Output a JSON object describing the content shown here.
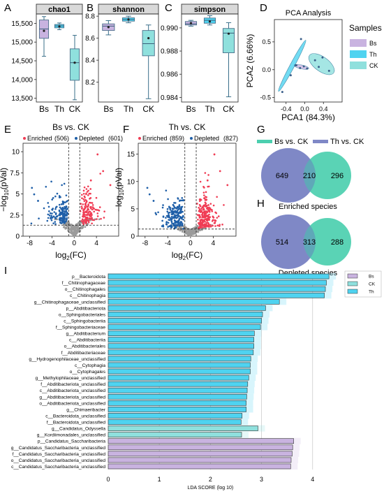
{
  "panel_letters": {
    "A": "A",
    "B": "B",
    "C": "C",
    "D": "D",
    "E": "E",
    "F": "F",
    "G": "G",
    "H": "H",
    "I": "I"
  },
  "colors": {
    "Bs": "#c9b3e0",
    "Th": "#4fd3f0",
    "CK": "#8fe0dd",
    "depleted": "#1f5fa8",
    "enriched": "#f03c54",
    "ns": "#9b9b9b",
    "venn_left": "#7f88c6",
    "venn_right": "#4ccfaf",
    "venn_overlap": "#5fa8b8"
  },
  "chart_data": [
    {
      "type": "box",
      "panel": "A",
      "title": "chao1",
      "categories": [
        "Bs",
        "Th",
        "CK"
      ],
      "ylim": [
        13400,
        15750
      ],
      "yticks": [
        13500,
        14000,
        14500,
        15000,
        15500
      ],
      "ytick_labels": [
        "13,500",
        "14,000",
        "14,500",
        "15,000",
        "15,500"
      ],
      "boxes": [
        {
          "min": 14620,
          "q1": 15100,
          "median": 15350,
          "q3": 15590,
          "max": 15680,
          "mean": 15300
        },
        {
          "min": 15330,
          "q1": 15380,
          "median": 15430,
          "q3": 15470,
          "max": 15510,
          "mean": 15420
        },
        {
          "min": 13460,
          "q1": 13980,
          "median": 14450,
          "q3": 14820,
          "max": 15180,
          "mean": 14450
        }
      ]
    },
    {
      "type": "box",
      "panel": "B",
      "title": "shannon",
      "categories": [
        "Bs",
        "Th",
        "CK"
      ],
      "ylim": [
        8.02,
        8.82
      ],
      "yticks": [
        8.2,
        8.4,
        8.6,
        8.8
      ],
      "ytick_labels": [
        "8.2",
        "8.4",
        "8.6",
        "8.8"
      ],
      "boxes": [
        {
          "min": 8.63,
          "q1": 8.67,
          "median": 8.71,
          "q3": 8.73,
          "max": 8.76,
          "mean": 8.7
        },
        {
          "min": 8.74,
          "q1": 8.755,
          "median": 8.77,
          "q3": 8.785,
          "max": 8.8,
          "mean": 8.77
        },
        {
          "min": 8.05,
          "q1": 8.44,
          "median": 8.55,
          "q3": 8.67,
          "max": 8.72,
          "mean": 8.6
        }
      ]
    },
    {
      "type": "box",
      "panel": "C",
      "title": "simpson",
      "categories": [
        "Bs",
        "Th",
        "CK"
      ],
      "ylim": [
        0.9836,
        0.9912
      ],
      "yticks": [
        0.984,
        0.986,
        0.988,
        0.99
      ],
      "ytick_labels": [
        "0.984",
        "0.986",
        "0.988",
        "0.990"
      ],
      "boxes": [
        {
          "min": 0.99015,
          "q1": 0.99025,
          "median": 0.99035,
          "q3": 0.99055,
          "max": 0.99065,
          "mean": 0.9904
        },
        {
          "min": 0.99025,
          "q1": 0.9904,
          "median": 0.99065,
          "q3": 0.99085,
          "max": 0.99105,
          "mean": 0.99055
        },
        {
          "min": 0.98405,
          "q1": 0.98785,
          "median": 0.98955,
          "q3": 0.98995,
          "max": 0.99045,
          "mean": 0.9895
        }
      ]
    },
    {
      "type": "scatter",
      "panel": "D",
      "title": "PCA Analysis",
      "xlabel": "PCA1 (84.3%)",
      "ylabel": "PCA2 (6.66%)",
      "xlim": [
        -0.65,
        0.8
      ],
      "ylim": [
        -0.58,
        0.9
      ],
      "xticks": [
        -0.4,
        0,
        0.4
      ],
      "xtick_labels": [
        "-0.4",
        "0.0",
        "0.4"
      ],
      "yticks": [
        -0.5,
        0,
        0.5
      ],
      "ytick_labels": [
        "-0.5",
        "0.0",
        "0.5"
      ],
      "legend_title": "Samples",
      "series": [
        {
          "name": "Bs",
          "points": [
            [
              -0.18,
              0.08
            ],
            [
              -0.1,
              0.03
            ],
            [
              -0.02,
              0.06
            ],
            [
              0.05,
              0.02
            ]
          ],
          "ellipse": {
            "cx": -0.07,
            "cy": 0.05,
            "rx": 0.16,
            "ry": 0.035,
            "angle_deg": -12
          }
        },
        {
          "name": "Th",
          "points": [
            [
              -0.48,
              -0.4
            ],
            [
              -0.3,
              -0.1
            ],
            [
              -0.2,
              0.08
            ],
            [
              -0.08,
              0.55
            ]
          ],
          "ellipse": {
            "cx": -0.27,
            "cy": 0.07,
            "rx": 0.62,
            "ry": 0.04,
            "angle_deg": 62
          }
        },
        {
          "name": "CK",
          "points": [
            [
              0.22,
              0.17
            ],
            [
              0.3,
              0.05
            ],
            [
              0.38,
              0.22
            ],
            [
              0.52,
              -0.02
            ]
          ],
          "ellipse": {
            "cx": 0.36,
            "cy": 0.1,
            "rx": 0.32,
            "ry": 0.13,
            "angle_deg": -36
          }
        }
      ]
    },
    {
      "type": "scatter",
      "panel": "E",
      "title": "Bs vs. CK",
      "xlabel": "log2(FC)",
      "ylabel": "-log10(pVal)",
      "xlim": [
        -9.2,
        8
      ],
      "ylim": [
        0,
        11
      ],
      "xticks": [
        -8,
        -4,
        0,
        4
      ],
      "yticks": [
        0,
        2.5,
        5,
        7.5,
        10
      ],
      "ytick_labels": [
        "0",
        "2.5",
        "5",
        "7.5",
        "10"
      ],
      "threshold_x": [
        -1,
        1
      ],
      "threshold_y": 1.3,
      "legend": [
        {
          "label": "Enriched",
          "count": "(506)",
          "color": "enriched"
        },
        {
          "label": "Depleted",
          "count": "(601)",
          "color": "depleted"
        }
      ],
      "summary": {
        "enriched": 506,
        "depleted": 601
      }
    },
    {
      "type": "scatter",
      "panel": "F",
      "title": "Th vs. CK",
      "xlabel": "log2(FC)",
      "ylabel": "-log10(pVal)",
      "xlim": [
        -9.2,
        8
      ],
      "ylim": [
        0,
        17
      ],
      "xticks": [
        -8,
        -4,
        0,
        4
      ],
      "yticks": [
        0,
        5,
        10,
        15
      ],
      "ytick_labels": [
        "0",
        "5",
        "10",
        "15"
      ],
      "threshold_x": [
        -1,
        1
      ],
      "threshold_y": 1.3,
      "legend": [
        {
          "label": "Enriched",
          "count": "(859)",
          "color": "enriched"
        },
        {
          "label": "Depleted",
          "count": "(827)",
          "color": "depleted"
        }
      ],
      "summary": {
        "enriched": 859,
        "depleted": 827
      }
    },
    {
      "type": "venn",
      "panel": "G",
      "legend": [
        "Bs vs. CK",
        "Th vs. CK"
      ],
      "left": 649,
      "overlap": 210,
      "right": 296,
      "caption": "Enriched species"
    },
    {
      "type": "venn",
      "panel": "H",
      "left": 514,
      "overlap": 313,
      "right": 288,
      "caption": "Depleted species"
    },
    {
      "type": "bar",
      "orientation": "horizontal",
      "panel": "I",
      "xlabel": "LDA SCORE (log 10)",
      "xlim": [
        0,
        4.55
      ],
      "xticks": [
        0,
        1,
        2,
        3,
        4
      ],
      "legend": [
        "Bs",
        "CK",
        "Th"
      ],
      "categories": [
        "p__Bacteroidota",
        "f__Chitinophagaceae",
        "o__Chitinophagales",
        "c__Chitinophagia",
        "g__Chitinophagaceae_unclassified",
        "p__Abditibacteriota",
        "o__Sphingobacteriales",
        "c__Sphingobacteriia",
        "f__Sphingobacteriaceae",
        "g__Abditibacterium",
        "c__Abditibacteriia",
        "o__Abditibacteriales",
        "f__Abditibacteriaceae",
        "g__Hydrogenophilaceae_unclassified",
        "c__Cytophagia",
        "o__Cytophagales",
        "g__Methylophilaceae_unclassified",
        "f__Abditibacteriota_unclassified",
        "c__Abditibacteriota_unclassified",
        "g__Abditibacteriota_unclassified",
        "o__Abditibacteriota_unclassified",
        "g__Chimaeribacter",
        "c__Bacteroidota_unclassified",
        "f__Bacteroidota_unclassified",
        "g__Candidatus_Odyssella",
        "g__Kordiimonadales_unclassified",
        "p__Candidatus_Saccharibacteria",
        "g__Candidatus_Saccharibacteria_unclassified",
        "f__Candidatus_Saccharibacteria_unclassified",
        "o__Candidatus_Saccharibacteria_unclassified",
        "c__Candidatus_Saccharibacteria_unclassified"
      ],
      "values": [
        4.32,
        4.27,
        4.25,
        4.23,
        3.35,
        3.08,
        3.02,
        3.0,
        2.98,
        2.86,
        2.85,
        2.85,
        2.84,
        2.79,
        2.78,
        2.78,
        2.75,
        2.73,
        2.72,
        2.71,
        2.7,
        2.7,
        2.62,
        2.6,
        2.93,
        2.61,
        3.63,
        3.61,
        3.6,
        3.58,
        3.57
      ],
      "groups": [
        "Th",
        "Th",
        "Th",
        "Th",
        "Th",
        "Th",
        "Th",
        "Th",
        "Th",
        "Th",
        "Th",
        "Th",
        "Th",
        "Th",
        "Th",
        "Th",
        "Th",
        "Th",
        "Th",
        "Th",
        "Th",
        "Th",
        "Th",
        "Th",
        "CK",
        "CK",
        "Bs",
        "Bs",
        "Bs",
        "Bs",
        "Bs"
      ]
    }
  ]
}
